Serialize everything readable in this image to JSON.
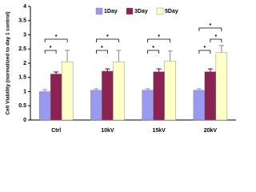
{
  "chart_data": {
    "type": "bar",
    "y_label": "Cell Viability (normalized to day 1 control)",
    "categories": [
      "Ctrl",
      "10kV",
      "15kV",
      "20kV"
    ],
    "series": [
      {
        "name": "1Day",
        "color": "#9999f0",
        "values": [
          1.0,
          1.05,
          1.05,
          1.05
        ],
        "errors": [
          0.07,
          0.05,
          0.05,
          0.05
        ]
      },
      {
        "name": "3Day",
        "color": "#8b2252",
        "values": [
          1.62,
          1.72,
          1.7,
          1.7
        ],
        "errors": [
          0.07,
          0.08,
          0.1,
          0.1
        ]
      },
      {
        "name": "5Day",
        "color": "#ffffc8",
        "values": [
          2.05,
          2.05,
          2.08,
          2.37
        ],
        "errors": [
          0.4,
          0.4,
          0.35,
          0.25
        ]
      }
    ],
    "ylim": [
      0,
      4
    ],
    "yticks": [
      0,
      0.5,
      1,
      1.5,
      2,
      2.5,
      3,
      3.5,
      4
    ],
    "legend": "top",
    "annotations": [
      {
        "text": "*",
        "group": 0,
        "from": 0,
        "to": 1
      },
      {
        "text": "*",
        "group": 0,
        "from": 0,
        "to": 2
      },
      {
        "text": "*",
        "group": 1,
        "from": 0,
        "to": 1
      },
      {
        "text": "*",
        "group": 1,
        "from": 0,
        "to": 2
      },
      {
        "text": "*",
        "group": 2,
        "from": 0,
        "to": 1
      },
      {
        "text": "*",
        "group": 2,
        "from": 0,
        "to": 2
      },
      {
        "text": "*",
        "group": 3,
        "from": 0,
        "to": 1
      },
      {
        "text": "*",
        "group": 3,
        "from": 1,
        "to": 2
      },
      {
        "text": "*",
        "group": 3,
        "from": 0,
        "to": 2
      }
    ]
  }
}
